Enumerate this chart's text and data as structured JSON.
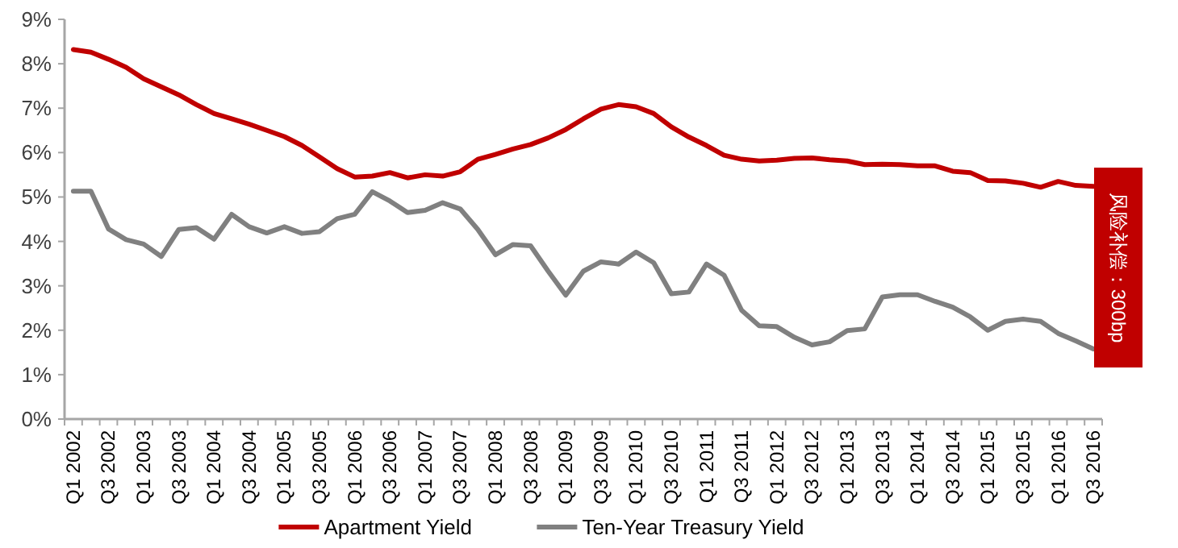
{
  "chart_data": {
    "type": "line",
    "categories": [
      "Q1 2002",
      null,
      "Q3 2002",
      null,
      "Q1 2003",
      null,
      "Q3 2003",
      null,
      "Q1 2004",
      null,
      "Q3 2004",
      null,
      "Q1 2005",
      null,
      "Q3 2005",
      null,
      "Q1 2006",
      null,
      "Q3 2006",
      null,
      "Q1 2007",
      null,
      "Q3 2007",
      null,
      "Q1 2008",
      null,
      "Q3 2008",
      null,
      "Q1 2009",
      null,
      "Q3 2009",
      null,
      "Q1 2010",
      null,
      "Q3 2010",
      null,
      "Q1 2011",
      null,
      "Q3 2011",
      null,
      "Q1 2012",
      null,
      "Q3 2012",
      null,
      "Q1 2013",
      null,
      "Q3 2013",
      null,
      "Q1 2014",
      null,
      "Q3 2014",
      null,
      "Q1 2015",
      null,
      "Q3 2015",
      null,
      "Q1 2016",
      null,
      "Q3 2016"
    ],
    "series": [
      {
        "name": "Apartment Yield",
        "color": "#c00000",
        "values": [
          8.32,
          8.26,
          8.1,
          7.92,
          7.66,
          7.48,
          7.3,
          7.08,
          6.88,
          6.76,
          6.64,
          6.5,
          6.36,
          6.16,
          5.9,
          5.64,
          5.45,
          5.47,
          5.55,
          5.43,
          5.5,
          5.47,
          5.57,
          5.85,
          5.96,
          6.08,
          6.18,
          6.33,
          6.52,
          6.76,
          6.98,
          7.08,
          7.03,
          6.88,
          6.58,
          6.35,
          6.16,
          5.94,
          5.85,
          5.81,
          5.83,
          5.87,
          5.88,
          5.84,
          5.81,
          5.73,
          5.74,
          5.73,
          5.7,
          5.7,
          5.58,
          5.55,
          5.37,
          5.36,
          5.31,
          5.22,
          5.35,
          5.26,
          5.24
        ]
      },
      {
        "name": "Ten-Year Treasury Yield",
        "color": "#808080",
        "values": [
          5.13,
          5.13,
          4.28,
          4.04,
          3.94,
          3.66,
          4.27,
          4.31,
          4.05,
          4.61,
          4.33,
          4.19,
          4.33,
          4.18,
          4.22,
          4.51,
          4.61,
          5.12,
          4.91,
          4.65,
          4.7,
          4.87,
          4.73,
          4.27,
          3.7,
          3.93,
          3.9,
          3.33,
          2.79,
          3.33,
          3.54,
          3.49,
          3.76,
          3.52,
          2.82,
          2.86,
          3.49,
          3.24,
          2.45,
          2.1,
          2.08,
          1.84,
          1.67,
          1.74,
          1.99,
          2.03,
          2.75,
          2.8,
          2.8,
          2.65,
          2.52,
          2.3,
          2.0,
          2.2,
          2.25,
          2.2,
          1.93,
          1.76,
          1.58
        ]
      }
    ],
    "ylim": [
      0,
      9
    ],
    "yticks": [
      {
        "value": 0,
        "label": "0%"
      },
      {
        "value": 1,
        "label": "1%"
      },
      {
        "value": 2,
        "label": "2%"
      },
      {
        "value": 3,
        "label": "3%"
      },
      {
        "value": 4,
        "label": "4%"
      },
      {
        "value": 5,
        "label": "5%"
      },
      {
        "value": 6,
        "label": "6%"
      },
      {
        "value": 7,
        "label": "7%"
      },
      {
        "value": 8,
        "label": "8%"
      },
      {
        "value": 9,
        "label": "9%"
      }
    ],
    "annotations": [
      "风险补偿：300bp"
    ],
    "legend": "bottom",
    "grid": false,
    "marker": "none",
    "line_style": "solid"
  }
}
